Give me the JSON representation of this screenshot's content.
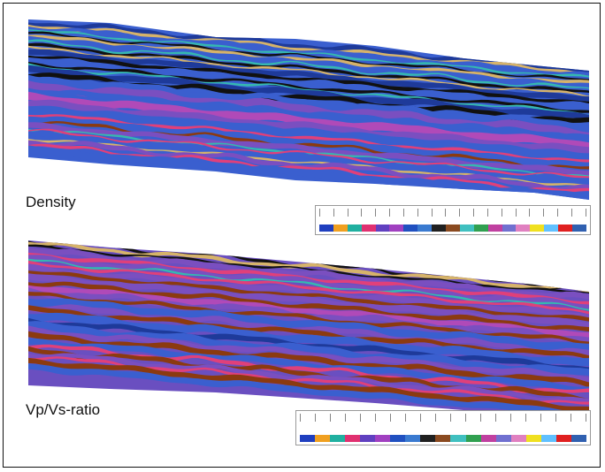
{
  "panels": [
    {
      "label": "Density",
      "colorbar_colors": [
        "#1f3fbf",
        "#f0a020",
        "#20b0a0",
        "#e03070",
        "#6040c0",
        "#a040c0",
        "#2050c0",
        "#3a7ad0",
        "#202020",
        "#8a4a20",
        "#40c0c0",
        "#30a050",
        "#c040a0",
        "#7070d0",
        "#e080c0",
        "#f0e020",
        "#60c0ff",
        "#e02020",
        "#3060b0"
      ]
    },
    {
      "label": "Vp/Vs-ratio",
      "colorbar_colors": [
        "#1f3fbf",
        "#f0a020",
        "#20b0a0",
        "#e03070",
        "#6040c0",
        "#a040c0",
        "#2050c0",
        "#3a7ad0",
        "#202020",
        "#8a4a20",
        "#40c0c0",
        "#30a050",
        "#c040a0",
        "#7070d0",
        "#e080c0",
        "#f0e020",
        "#60c0ff",
        "#e02020",
        "#3060b0"
      ]
    }
  ],
  "section_palette": {
    "top_band": "#d6b36a",
    "blue": "#3a5fcf",
    "dark_blue": "#1e3a9a",
    "purple": "#7a4fc0",
    "magenta": "#b04ab8",
    "pink": "#e0407a",
    "brown": "#8b3a10",
    "teal": "#35b8b0",
    "black": "#111111"
  }
}
